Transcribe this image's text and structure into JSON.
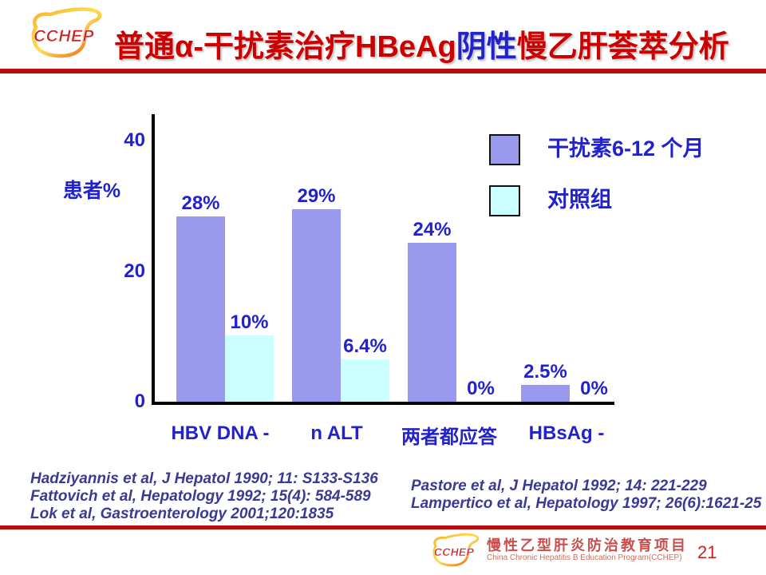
{
  "header": {
    "title_part1": "普通α-干扰素治疗HBeAg",
    "title_part2": "阴性",
    "title_part3": "慢乙肝荟萃分析",
    "logo_text": "CCHEP"
  },
  "colors": {
    "accent_red": "#CC0000",
    "divider_red": "#B60D0D",
    "text_blue": "#2222CC",
    "reference_blue": "#3A3A94",
    "bar_purple": "#9999EE",
    "bar_cyan": "#CCFFFF"
  },
  "chart_data": {
    "type": "bar",
    "title": "",
    "ylabel": "患者%",
    "xlabel": "",
    "categories": [
      "HBV DNA -",
      "n ALT",
      "两者都应答",
      "HBsAg -"
    ],
    "series": [
      {
        "name": "干扰素6-12 个月",
        "color": "#9999EE",
        "values": [
          28,
          29,
          24,
          2.5
        ],
        "value_labels": [
          "28%",
          "29%",
          "24%",
          "2.5%"
        ]
      },
      {
        "name": "对照组",
        "color": "#CCFFFF",
        "values": [
          10,
          6.4,
          0,
          0
        ],
        "value_labels": [
          "10%",
          "6.4%",
          "0%",
          "0%"
        ]
      }
    ],
    "yticks": [
      "0",
      "20",
      "40"
    ],
    "ylim": [
      0,
      43
    ],
    "grid": false,
    "legend_position": "top-right"
  },
  "references": {
    "left": [
      "Hadziyannis et al, J Hepatol 1990; 11: S133-S136",
      "Fattovich et al, Hepatology 1992; 15(4): 584-589",
      "Lok et al, Gastroenterology 2001;120:1835"
    ],
    "right": [
      "Pastore et al, J Hepatol 1992; 14: 221-229",
      "Lampertico et al, Hepatology 1997; 26(6):1621-25"
    ]
  },
  "footer": {
    "logo_text": "CCHEP",
    "program_name_cn": "慢性乙型肝炎防治教育项目",
    "program_name_en": "China Chronic Hepatitis B Education Program(CCHEP)",
    "page_number": "21"
  }
}
